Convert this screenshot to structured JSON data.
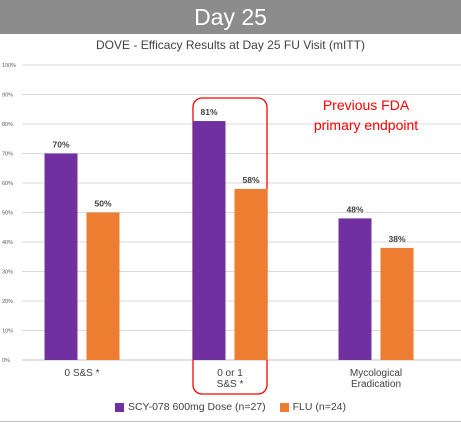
{
  "banner": {
    "title": "Day 25"
  },
  "chart_data": {
    "type": "bar",
    "title": "DOVE - Efficacy Results at Day 25 FU Visit (mITT)",
    "categories": [
      [
        "0 S&S *"
      ],
      [
        "0 or 1",
        "S&S *"
      ],
      [
        "Mycological",
        "Eradication"
      ]
    ],
    "series": [
      {
        "name": "SCY-078 600mg Dose (n=27)",
        "color": "#7030a0",
        "values": [
          70,
          81,
          48
        ],
        "labels": [
          "70%",
          "81%",
          "48%"
        ]
      },
      {
        "name": "FLU (n=24)",
        "color": "#ed7d31",
        "values": [
          50,
          58,
          38
        ],
        "labels": [
          "50%",
          "58%",
          "38%"
        ]
      }
    ],
    "ylim": [
      0,
      100
    ],
    "yticks": [
      "0%",
      "10%",
      "20%",
      "30%",
      "40%",
      "50%",
      "60%",
      "70%",
      "80%",
      "90%",
      "100%"
    ],
    "grid": true,
    "legend_position": "bottom",
    "annotation": {
      "lines": [
        "Previous FDA",
        "primary endpoint"
      ],
      "color": "#ff0000",
      "highlight_category": 1
    }
  }
}
